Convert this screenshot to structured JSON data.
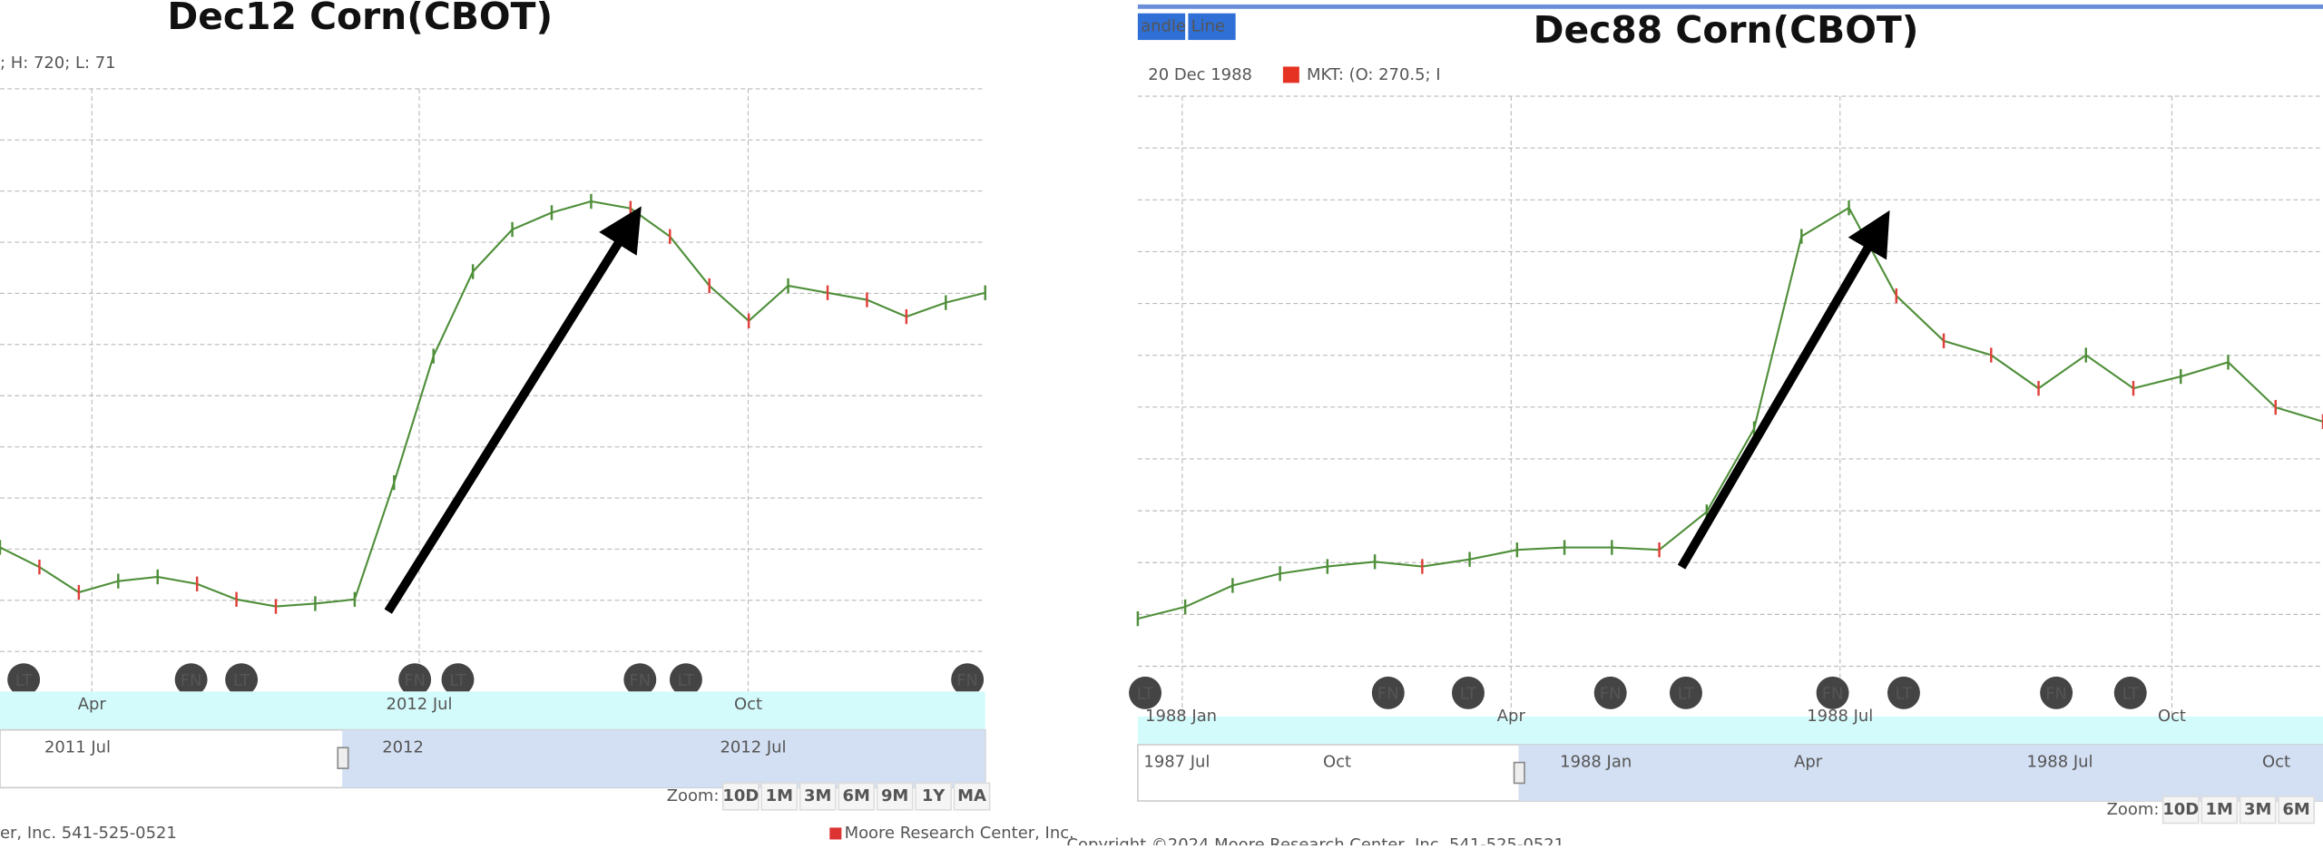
{
  "chart_data": [
    {
      "type": "line",
      "title": "Dec12 Corn(CBOT)",
      "legend_text": "; H: 720; L: 71",
      "series": [
        {
          "name": "MKT",
          "color": "#4f8f3a",
          "values": [
            554,
            540,
            522,
            530,
            533,
            528,
            517,
            512,
            514,
            517,
            600,
            690,
            750,
            780,
            792,
            800,
            795,
            775,
            740,
            715,
            740,
            735,
            730,
            718,
            728,
            735
          ]
        }
      ],
      "ylim": [
        480,
        880
      ],
      "x_labels": [
        "Apr",
        "2012 Jul",
        "Oct"
      ],
      "events": [
        "LT",
        "FN",
        "LT",
        "FN",
        "LT",
        "FN",
        "LT",
        "FN"
      ],
      "navigator_labels": [
        "2011 Jul",
        "2012",
        "2012 Jul"
      ],
      "zoom_label": "Zoom:",
      "zoom_buttons": [
        "10D",
        "1M",
        "3M",
        "6M",
        "9M",
        "1Y",
        "MA"
      ],
      "footer": "er, Inc. 541-525-0521",
      "credit": "Moore Research Center, Inc."
    },
    {
      "type": "line",
      "title": "Dec88 Corn(CBOT)",
      "mode_buttons": [
        "andle",
        "Line"
      ],
      "legend_date": "20 Dec 1988",
      "legend_text": "MKT: (O: 270.5; I",
      "series": [
        {
          "name": "MKT",
          "color": "#4f8f3a",
          "values": [
            180,
            185,
            194,
            199,
            202,
            204,
            202,
            205,
            209,
            210,
            210,
            209,
            225,
            260,
            341,
            353,
            316,
            297,
            291,
            277,
            291,
            277,
            282,
            288,
            269,
            263
          ]
        }
      ],
      "ylim": [
        160,
        400
      ],
      "x_labels": [
        "1988 Jan",
        "Apr",
        "1988 Jul",
        "Oct"
      ],
      "events": [
        "LT",
        "FN",
        "LT",
        "FN",
        "LT",
        "FN",
        "LT",
        "FN",
        "LT"
      ],
      "navigator_labels": [
        "1987 Jul",
        "Oct",
        "1988 Jan",
        "Apr",
        "1988 Jul",
        "Oct"
      ],
      "zoom_label": "Zoom:",
      "zoom_buttons": [
        "10D",
        "1M",
        "3M",
        "6M"
      ],
      "footer": "Copyright ©2024 Moore Research Center, Inc. 541-525-0521"
    }
  ]
}
